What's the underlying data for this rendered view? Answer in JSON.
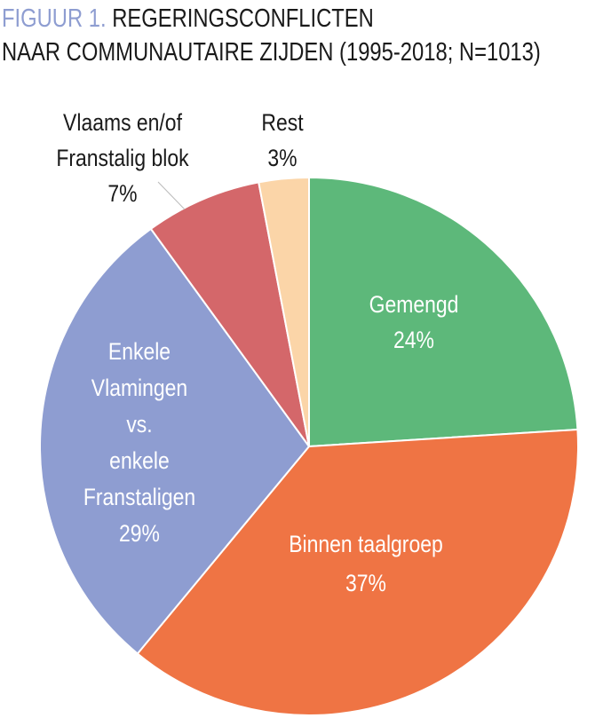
{
  "chart_data": {
    "type": "pie",
    "title_prefix": "FIGUUR 1.",
    "title_line1": "REGERINGSCONFLICTEN",
    "title_line2": "NAAR COMMUNAUTAIRE ZIJDEN (1995-2018; N=1013)",
    "start": "top",
    "direction": "clockwise",
    "slices": [
      {
        "label": [
          "Gemengd"
        ],
        "value": 24,
        "value_label": "24%",
        "color": "#5db87a",
        "label_color": "#ffffff"
      },
      {
        "label": [
          "Binnen taalgroep"
        ],
        "value": 37,
        "value_label": "37%",
        "color": "#ef7444",
        "label_color": "#ffffff"
      },
      {
        "label": [
          "Enkele",
          "Vlamingen",
          "vs.",
          "enkele",
          "Franstaligen"
        ],
        "value": 29,
        "value_label": "29%",
        "color": "#8e9dd1",
        "label_color": "#ffffff"
      },
      {
        "label": [
          "Vlaams en/of",
          "Franstalig blok"
        ],
        "value": 7,
        "value_label": "7%",
        "color": "#d4676a",
        "label_color": "#1a1a1a"
      },
      {
        "label": [
          "Rest"
        ],
        "value": 3,
        "value_label": "3%",
        "color": "#fbd5a8",
        "label_color": "#1a1a1a"
      }
    ]
  }
}
